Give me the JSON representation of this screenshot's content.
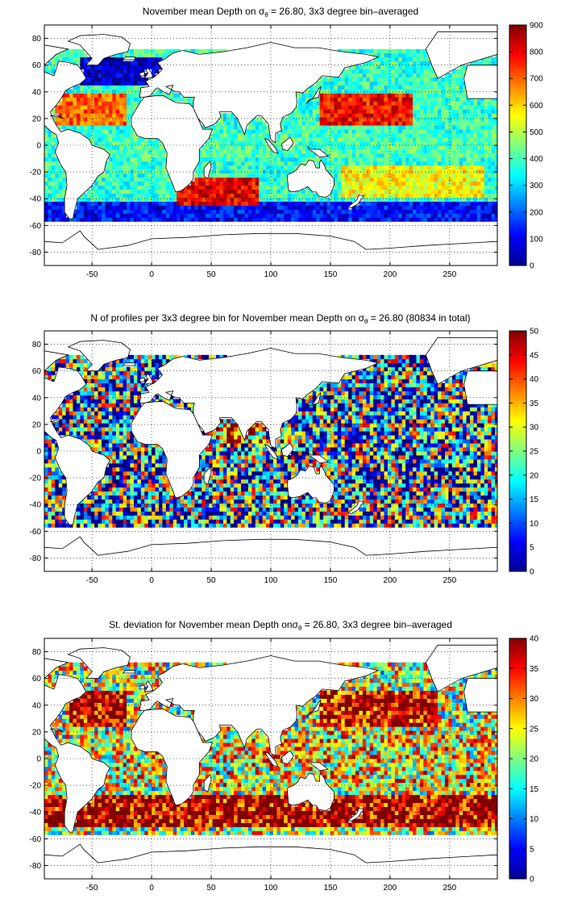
{
  "chart_data": [
    {
      "type": "heatmap",
      "title": "November mean Depth on σθ = 26.80, 3x3 degree bin–averaged",
      "title_prefix": "November mean Depth on σ",
      "title_sub": "θ",
      "title_suffix": " = 26.80, 3x3 degree bin–averaged",
      "xlim": [
        -90,
        290
      ],
      "ylim": [
        -90,
        90
      ],
      "xticks": [
        -50,
        0,
        50,
        100,
        150,
        200,
        250
      ],
      "yticks": [
        -80,
        -60,
        -40,
        -20,
        0,
        20,
        40,
        60,
        80
      ],
      "grid": true,
      "colorbar": {
        "min": 0,
        "max": 900,
        "ticks": [
          0,
          100,
          200,
          300,
          400,
          500,
          600,
          700,
          800,
          900
        ],
        "colormap": "jet"
      },
      "regions": [
        {
          "region": "Southern Ocean band",
          "lon": [
            -90,
            290
          ],
          "lat": [
            -57,
            -42
          ],
          "value": 120
        },
        {
          "region": "South Atlantic / Indian subtropical gyre",
          "lon": [
            20,
            90
          ],
          "lat": [
            -45,
            -25
          ],
          "value": 800
        },
        {
          "region": "North Pacific subtropical gyre",
          "lon": [
            140,
            220
          ],
          "lat": [
            15,
            40
          ],
          "value": 780
        },
        {
          "region": "North Atlantic subtropical gyre",
          "lon": [
            -80,
            -20
          ],
          "lat": [
            15,
            40
          ],
          "value": 700
        },
        {
          "region": "Labrador Sea / North Atlantic subpolar",
          "lon": [
            -60,
            10
          ],
          "lat": [
            45,
            65
          ],
          "value": 60
        },
        {
          "region": "Equatorial band",
          "lon": [
            -40,
            290
          ],
          "lat": [
            -8,
            8
          ],
          "value": 400
        },
        {
          "region": "South Pacific subtropical gyre",
          "lon": [
            160,
            280
          ],
          "lat": [
            -40,
            -15
          ],
          "value": 560
        }
      ]
    },
    {
      "type": "heatmap",
      "title": "N of profiles per 3x3 degree bin for November mean Depth on σθ = 26.80 (80834 in total)",
      "title_prefix": "N of profiles per 3x3 degree bin for November mean Depth on σ",
      "title_sub": "θ",
      "title_suffix": " = 26.80 (80834 in total)",
      "total_profiles": 80834,
      "xlim": [
        -90,
        290
      ],
      "ylim": [
        -90,
        90
      ],
      "xticks": [
        -50,
        0,
        50,
        100,
        150,
        200,
        250
      ],
      "yticks": [
        -80,
        -60,
        -40,
        -20,
        0,
        20,
        40,
        60,
        80
      ],
      "grid": true,
      "colorbar": {
        "min": 0,
        "max": 50,
        "ticks": [
          0,
          5,
          10,
          15,
          20,
          25,
          30,
          35,
          40,
          45,
          50
        ],
        "colormap": "jet"
      },
      "regions": [
        {
          "region": "Kuroshio / NW Pacific",
          "lon": [
            140,
            180
          ],
          "lat": [
            20,
            45
          ],
          "value": 50
        },
        {
          "region": "North Atlantic",
          "lon": [
            -60,
            -20
          ],
          "lat": [
            25,
            50
          ],
          "value": 35
        },
        {
          "region": "Open ocean typical",
          "lon": [
            -90,
            290
          ],
          "lat": [
            -55,
            60
          ],
          "value": 18
        },
        {
          "region": "Arabian Sea / Bay of Bengal",
          "lon": [
            55,
            95
          ],
          "lat": [
            5,
            25
          ],
          "value": 40
        }
      ]
    },
    {
      "type": "heatmap",
      "title": "St. deviation for November mean Depth onσθ = 26.80, 3x3 degree bin–averaged",
      "title_prefix": "St. deviation for November mean Depth onσ",
      "title_sub": "θ",
      "title_suffix": " = 26.80, 3x3 degree bin–averaged",
      "xlim": [
        -90,
        290
      ],
      "ylim": [
        -90,
        90
      ],
      "xticks": [
        -50,
        0,
        50,
        100,
        150,
        200,
        250
      ],
      "yticks": [
        -80,
        -60,
        -40,
        -20,
        0,
        20,
        40,
        60,
        80
      ],
      "grid": true,
      "colorbar": {
        "min": 0,
        "max": 40,
        "ticks": [
          0,
          5,
          10,
          15,
          20,
          25,
          30,
          35,
          40
        ],
        "colormap": "jet"
      },
      "regions": [
        {
          "region": "Southern Ocean",
          "lon": [
            -90,
            290
          ],
          "lat": [
            -52,
            -28
          ],
          "value": 40
        },
        {
          "region": "North Atlantic",
          "lon": [
            -70,
            -20
          ],
          "lat": [
            25,
            50
          ],
          "value": 40
        },
        {
          "region": "North Pacific",
          "lon": [
            140,
            240
          ],
          "lat": [
            25,
            50
          ],
          "value": 38
        },
        {
          "region": "Tropics",
          "lon": [
            -40,
            290
          ],
          "lat": [
            -20,
            20
          ],
          "value": 25
        }
      ]
    }
  ]
}
